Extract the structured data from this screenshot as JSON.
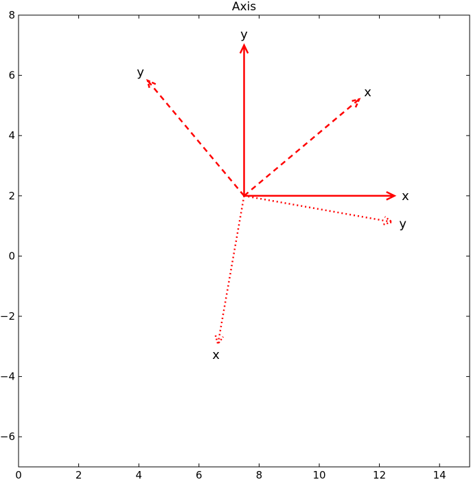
{
  "chart_data": {
    "type": "line",
    "title": "Axis",
    "xlabel": "",
    "ylabel": "",
    "xlim": [
      0,
      15
    ],
    "ylim": [
      -7,
      8
    ],
    "xticks": [
      0,
      2,
      4,
      6,
      8,
      10,
      12,
      14
    ],
    "yticks": [
      -6,
      -4,
      -2,
      0,
      2,
      4,
      6,
      8
    ],
    "xtick_labels": [
      "0",
      "2",
      "4",
      "6",
      "8",
      "10",
      "12",
      "14"
    ],
    "ytick_labels": [
      "−6",
      "−4",
      "−2",
      "0",
      "2",
      "4",
      "6",
      "8"
    ],
    "grid": false,
    "color": "#ff0000",
    "vectors": [
      {
        "style": "solid",
        "label": "x",
        "from": [
          7.5,
          2
        ],
        "to": [
          12.5,
          2
        ]
      },
      {
        "style": "solid",
        "label": "y",
        "from": [
          7.5,
          2
        ],
        "to": [
          7.5,
          7
        ]
      },
      {
        "style": "dashed",
        "label": "x",
        "from": [
          7.5,
          2
        ],
        "to": [
          11.33,
          5.21
        ]
      },
      {
        "style": "dashed",
        "label": "y",
        "from": [
          7.5,
          2
        ],
        "to": [
          4.29,
          5.83
        ]
      },
      {
        "style": "dotted",
        "label": "x",
        "from": [
          7.5,
          2
        ],
        "to": [
          6.63,
          -2.92
        ]
      },
      {
        "style": "dotted",
        "label": "y",
        "from": [
          7.5,
          2
        ],
        "to": [
          12.42,
          1.13
        ]
      }
    ]
  }
}
